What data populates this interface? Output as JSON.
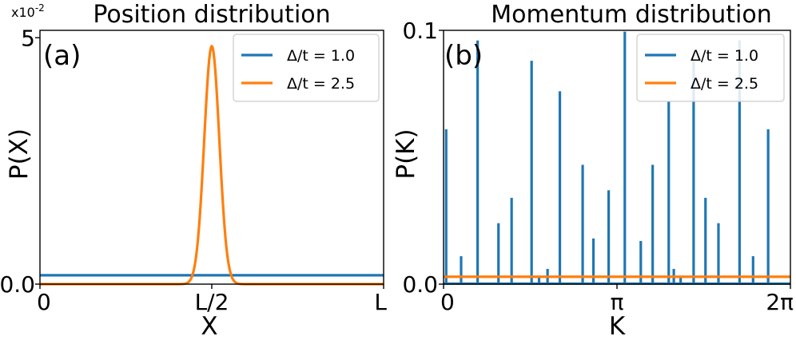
{
  "colors": {
    "series_1": "#1f77b4",
    "series_2": "#ff7f0e"
  },
  "chart_data": [
    {
      "type": "line",
      "panel_label": "(a)",
      "title": "Position distribution",
      "xlabel": "X",
      "ylabel": "P(X)",
      "y_multiplier": "x10",
      "y_multiplier_exponent": "-2",
      "xlim": [
        0,
        1
      ],
      "ylim": [
        0,
        5.15
      ],
      "x_ticks": [
        {
          "value": 0,
          "label": "0"
        },
        {
          "value": 0.5,
          "label": "L/2"
        },
        {
          "value": 1,
          "label": "L"
        }
      ],
      "y_ticks": [
        {
          "value": 0,
          "label": "0.0"
        },
        {
          "value": 5,
          "label": "5"
        }
      ],
      "legend_location": "upper right",
      "legend": [
        "Δ/t = 1.0",
        "Δ/t = 2.5"
      ],
      "series": [
        {
          "name": "Δ/t = 1.0",
          "x": [
            0,
            1
          ],
          "y": [
            0.18,
            0.18
          ]
        },
        {
          "name": "Δ/t = 2.5",
          "peak_x": 0.5,
          "peak_y": 4.83,
          "width": 0.022,
          "baseline": 0
        }
      ]
    },
    {
      "type": "line",
      "panel_label": "(b)",
      "title": "Momentum distribution",
      "xlabel": "K",
      "ylabel": "P(K)",
      "xlim": [
        0,
        6.2832
      ],
      "ylim": [
        0,
        0.1
      ],
      "x_ticks": [
        {
          "value": 0,
          "label": "0"
        },
        {
          "value": 3.1416,
          "label": "π"
        },
        {
          "value": 6.2832,
          "label": "2π"
        }
      ],
      "y_ticks": [
        {
          "value": 0,
          "label": "0.0"
        },
        {
          "value": 0.1,
          "label": "0.1"
        }
      ],
      "legend_location": "upper right",
      "legend": [
        "Δ/t = 1.0",
        "Δ/t = 2.5"
      ],
      "series": [
        {
          "name": "Δ/t = 1.0",
          "baseline": 0.0002,
          "peaks": [
            {
              "k": 0.047,
              "p": 0.061
            },
            {
              "k": 0.318,
              "p": 0.011
            },
            {
              "k": 0.617,
              "p": 0.096
            },
            {
              "k": 0.995,
              "p": 0.024
            },
            {
              "k": 1.233,
              "p": 0.034
            },
            {
              "k": 1.595,
              "p": 0.088
            },
            {
              "k": 1.73,
              "p": 0.003
            },
            {
              "k": 1.884,
              "p": 0.006
            },
            {
              "k": 2.107,
              "p": 0.076
            },
            {
              "k": 2.52,
              "p": 0.047
            },
            {
              "k": 2.715,
              "p": 0.018
            },
            {
              "k": 2.991,
              "p": 0.037
            },
            {
              "k": 3.283,
              "p": 0.0995
            },
            {
              "k": 3.573,
              "p": 0.017
            },
            {
              "k": 3.788,
              "p": 0.047
            },
            {
              "k": 4.079,
              "p": 0.072
            },
            {
              "k": 4.171,
              "p": 0.006
            },
            {
              "k": 4.295,
              "p": 0.003
            },
            {
              "k": 4.53,
              "p": 0.088
            },
            {
              "k": 4.745,
              "p": 0.034
            },
            {
              "k": 4.98,
              "p": 0.024
            },
            {
              "k": 5.362,
              "p": 0.096
            },
            {
              "k": 5.607,
              "p": 0.011
            },
            {
              "k": 5.88,
              "p": 0.061
            }
          ]
        },
        {
          "name": "Δ/t = 2.5",
          "x": [
            0,
            6.2832
          ],
          "y": [
            0.0029,
            0.0029
          ]
        }
      ]
    }
  ]
}
